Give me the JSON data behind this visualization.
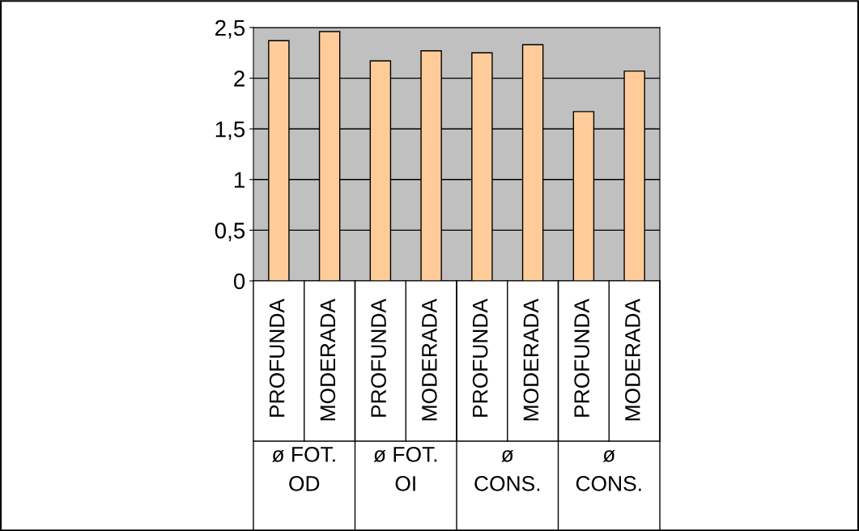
{
  "chart_data": {
    "type": "bar",
    "categories": [
      "PROFUNDA",
      "MODERADA",
      "PROFUNDA",
      "MODERADA",
      "PROFUNDA",
      "MODERADA",
      "PROFUNDA",
      "MODERADA"
    ],
    "values": [
      2.37,
      2.46,
      2.17,
      2.27,
      2.25,
      2.33,
      1.67,
      2.07
    ],
    "color": "#ffcc99",
    "ylim": [
      0,
      2.5
    ],
    "yticks": [
      0,
      {
        "value": 0.5,
        "label": "0,5"
      },
      1,
      {
        "value": 1.5,
        "label": "1,5"
      },
      2,
      {
        "value": 2.5,
        "label": "2,5"
      }
    ],
    "grid": "y",
    "annotations": [
      "ø FOT.\nOD",
      "ø FOT.\nOI",
      "ø\nCONS.",
      "ø\nCONS."
    ]
  }
}
